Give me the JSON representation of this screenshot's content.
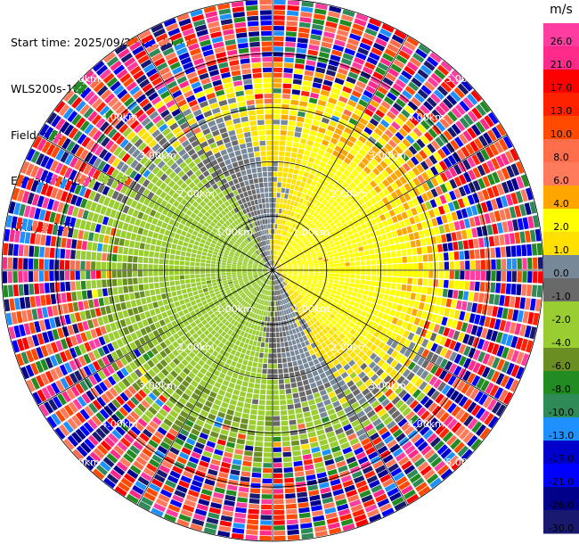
{
  "header": {
    "start_time": "Start time: 2025/09/25 02:30:17",
    "instrument": "WLS200s-181",
    "field": "Field: VEL",
    "elevation": "Elevation(deg): 35.00",
    "nrays": "NRays: 120"
  },
  "chart_data": {
    "type": "heatmap",
    "subtype": "polar-ppi",
    "field": "VEL",
    "unit": "m/s",
    "n_rays": 120,
    "elevation_deg": 35.0,
    "range_max_km": 5.0,
    "range_rings_km": [
      1,
      2,
      3,
      4,
      5
    ],
    "range_ring_labels": [
      "1.00km",
      "2.00km",
      "3.00km",
      "4.00km",
      "5.00km"
    ],
    "colorbar": {
      "ticks": [
        "26.0",
        "21.0",
        "17.0",
        "13.0",
        "10.0",
        "8.0",
        "6.0",
        "4.0",
        "2.0",
        "1.0",
        "0.0",
        "-1.0",
        "-2.0",
        "-4.0",
        "-6.0",
        "-8.0",
        "-10.0",
        "-13.0",
        "-17.0",
        "-21.0",
        "-26.0",
        "-30.0"
      ],
      "bins": [
        {
          "low": 26,
          "high": 30,
          "color": "#ff3da0"
        },
        {
          "low": 21,
          "high": 26,
          "color": "#ff2a8a"
        },
        {
          "low": 17,
          "high": 21,
          "color": "#ff0000"
        },
        {
          "low": 13,
          "high": 17,
          "color": "#ff2200"
        },
        {
          "low": 10,
          "high": 13,
          "color": "#ff4a00"
        },
        {
          "low": 8,
          "high": 10,
          "color": "#ff6e4a"
        },
        {
          "low": 6,
          "high": 8,
          "color": "#ff7b5c"
        },
        {
          "low": 4,
          "high": 6,
          "color": "#ffa500"
        },
        {
          "low": 2,
          "high": 4,
          "color": "#ffff00"
        },
        {
          "low": 1,
          "high": 2,
          "color": "#ffe000"
        },
        {
          "low": 0,
          "high": 1,
          "color": "#778899"
        },
        {
          "low": -1,
          "high": 0,
          "color": "#696969"
        },
        {
          "low": -2,
          "high": -1,
          "color": "#9acd32"
        },
        {
          "low": -4,
          "high": -2,
          "color": "#9acd32"
        },
        {
          "low": -6,
          "high": -4,
          "color": "#6b8e23"
        },
        {
          "low": -8,
          "high": -6,
          "color": "#228b22"
        },
        {
          "low": -10,
          "high": -8,
          "color": "#2e8b57"
        },
        {
          "low": -13,
          "high": -10,
          "color": "#1e90ff"
        },
        {
          "low": -17,
          "high": -13,
          "color": "#0000cd"
        },
        {
          "low": -21,
          "high": -17,
          "color": "#0000ff"
        },
        {
          "low": -26,
          "high": -21,
          "color": "#00008b"
        },
        {
          "low": -30,
          "high": -26,
          "color": "#191970"
        }
      ]
    },
    "pattern": {
      "core_inner_km": 0.3,
      "core_outer_km": 2.4,
      "positive_azimuth_deg": 60,
      "negative_azimuth_deg": 240,
      "noise_start_km": 3.1,
      "noise_full_km": 3.9
    }
  }
}
